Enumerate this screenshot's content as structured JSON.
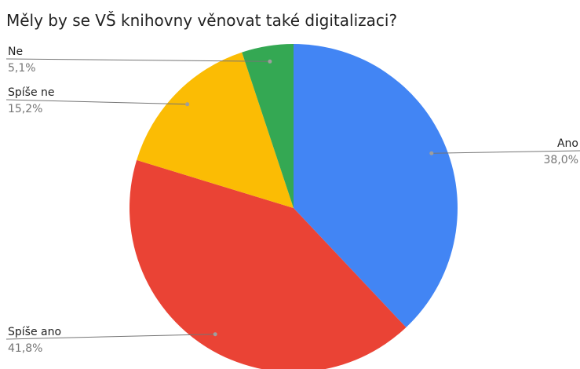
{
  "chart_data": {
    "type": "pie",
    "title": "Měly by se VŠ knihovny věnovat také digitalizaci?",
    "slices": [
      {
        "label": "Ano",
        "value": 38.0,
        "pct_label": "38,0%",
        "color": "#4285F4",
        "label_side": "right"
      },
      {
        "label": "Spíše ano",
        "value": 41.8,
        "pct_label": "41,8%",
        "color": "#EA4335",
        "label_side": "left"
      },
      {
        "label": "Spíše ne",
        "value": 15.2,
        "pct_label": "15,2%",
        "color": "#FBBC04",
        "label_side": "left"
      },
      {
        "label": "Ne",
        "value": 5.1,
        "pct_label": "5,1%",
        "color": "#34A853",
        "label_side": "left"
      }
    ],
    "start_angle_deg": 0,
    "direction": "clockwise",
    "legend": "none"
  }
}
